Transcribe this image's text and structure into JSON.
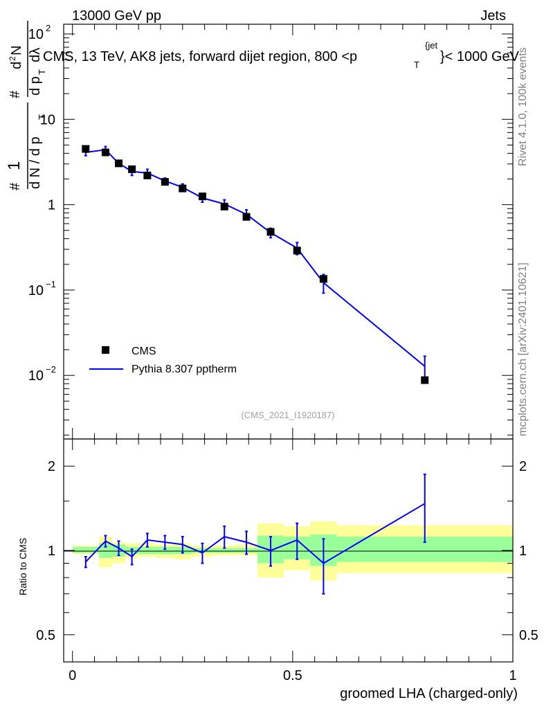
{
  "header": {
    "left": "13000 GeV pp",
    "right": "Jets"
  },
  "side_labels": {
    "rivet": "Rivet 4.1.0,  100k events",
    "mcplots": "mcplots.cern.ch [arXiv:2401.10621]"
  },
  "chart_data": [
    {
      "type": "scatter",
      "title": "CMS, 13 TeV, AK8 jets, forward dijet region, 800 <p_T^{jet}< 1000 GeV",
      "title_parts": {
        "main": "CMS, 13 TeV, AK8 jets, forward dijet region, 800 <p",
        "sub": "T",
        "sup": "{jet",
        "end": "}< 1000 GeV"
      },
      "ylabel_parts": {
        "hash1": "#",
        "one": "1",
        "dN": "d N / d p",
        "sub1": "T",
        "hash2": "#",
        "dpT": "d p",
        "sub2": "T",
        "d2N": "d",
        "two": "2",
        "N": "N",
        "dlambda": "dλ"
      },
      "yscale": "log",
      "ylim": [
        0.0018,
        130
      ],
      "xlim": [
        -0.02,
        1.0
      ],
      "y_ticks": [
        {
          "value": 100,
          "base": "10",
          "exp": "2"
        },
        {
          "value": 10,
          "base": "10",
          "exp": ""
        },
        {
          "value": 1,
          "base": "1",
          "exp": ""
        },
        {
          "value": 0.1,
          "base": "10",
          "exp": "−1"
        },
        {
          "value": 0.01,
          "base": "10",
          "exp": "−2"
        }
      ],
      "watermark": "(CMS_2021_I1920187)",
      "legend": {
        "position": "bottom-left",
        "entries": [
          "CMS",
          "Pythia 8.307 pptherm"
        ]
      },
      "series": [
        {
          "name": "CMS",
          "style": "square-marker",
          "color": "#000000",
          "x": [
            0.03,
            0.075,
            0.105,
            0.135,
            0.17,
            0.21,
            0.25,
            0.295,
            0.345,
            0.395,
            0.45,
            0.51,
            0.57,
            0.8
          ],
          "y": [
            4.5,
            4.1,
            3.05,
            2.6,
            2.2,
            1.85,
            1.55,
            1.25,
            0.95,
            0.72,
            0.48,
            0.29,
            0.135,
            0.0088
          ]
        },
        {
          "name": "Pythia 8.307 pptherm",
          "style": "line-with-errors",
          "color": "#0000ff",
          "x": [
            0.03,
            0.075,
            0.105,
            0.135,
            0.17,
            0.21,
            0.25,
            0.295,
            0.345,
            0.395,
            0.45,
            0.51,
            0.57,
            0.8
          ],
          "y": [
            4.1,
            4.4,
            3.05,
            2.45,
            2.35,
            1.9,
            1.6,
            1.2,
            1.02,
            0.77,
            0.47,
            0.31,
            0.122,
            0.0128
          ],
          "err": [
            0.35,
            0.4,
            0.22,
            0.25,
            0.25,
            0.15,
            0.15,
            0.13,
            0.12,
            0.1,
            0.06,
            0.05,
            0.03,
            0.004
          ]
        }
      ]
    },
    {
      "type": "scatter",
      "ylabel": "Ratio to CMS",
      "xlabel": "groomed LHA (charged-only)",
      "yscale": "log",
      "ylim": [
        0.4,
        2.5
      ],
      "xlim": [
        -0.02,
        1.0
      ],
      "y_ticks": [
        {
          "value": 2,
          "label": "2"
        },
        {
          "value": 1,
          "label": "1"
        },
        {
          "value": 0.5,
          "label": "0.5"
        }
      ],
      "x_ticks": [
        {
          "value": 0,
          "label": "0"
        },
        {
          "value": 0.5,
          "label": "0.5"
        },
        {
          "value": 1,
          "label": "1"
        }
      ],
      "bands": {
        "edges": [
          0.0,
          0.06,
          0.09,
          0.12,
          0.15,
          0.19,
          0.23,
          0.27,
          0.32,
          0.37,
          0.42,
          0.48,
          0.54,
          0.6,
          1.0
        ],
        "yellow_lo": [
          0.97,
          0.87,
          0.9,
          0.94,
          0.95,
          0.94,
          0.93,
          0.95,
          0.96,
          0.96,
          0.8,
          0.85,
          0.78,
          0.83
        ],
        "yellow_hi": [
          1.04,
          1.12,
          1.07,
          1.06,
          1.06,
          1.05,
          1.06,
          1.04,
          1.04,
          1.05,
          1.25,
          1.22,
          1.27,
          1.23
        ],
        "green_lo": [
          0.98,
          0.94,
          0.95,
          0.97,
          0.97,
          0.97,
          0.97,
          0.98,
          0.98,
          0.98,
          0.9,
          0.93,
          0.88,
          0.91
        ],
        "green_hi": [
          1.03,
          1.06,
          1.05,
          1.03,
          1.03,
          1.03,
          1.03,
          1.02,
          1.02,
          1.02,
          1.13,
          1.12,
          1.14,
          1.12
        ]
      },
      "series": [
        {
          "name": "Pythia 8.307 pptherm / CMS",
          "color": "#0000ff",
          "x": [
            0.03,
            0.075,
            0.105,
            0.135,
            0.17,
            0.21,
            0.25,
            0.295,
            0.345,
            0.395,
            0.45,
            0.51,
            0.57,
            0.8
          ],
          "y": [
            0.91,
            1.08,
            1.02,
            0.95,
            1.09,
            1.07,
            1.05,
            0.98,
            1.12,
            1.07,
            1.0,
            1.09,
            0.9,
            1.47
          ],
          "err": [
            0.04,
            0.05,
            0.06,
            0.06,
            0.06,
            0.06,
            0.07,
            0.08,
            0.1,
            0.1,
            0.12,
            0.16,
            0.2,
            0.4
          ]
        }
      ]
    }
  ]
}
